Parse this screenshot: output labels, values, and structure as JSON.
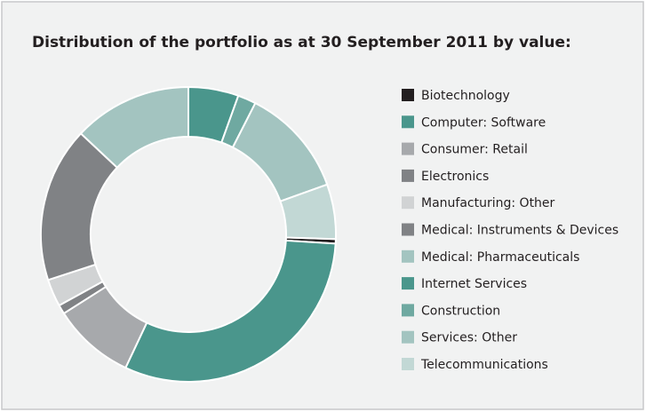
{
  "chart_data": {
    "type": "donut",
    "title": "Distribution of the portfolio as at 30 September 2011 by value:",
    "categories": [
      "Biotechnology",
      "Computer: Software",
      "Consumer: Retail",
      "Electronics",
      "Manufacturing: Other",
      "Medical: Instruments & Devices",
      "Medical: Pharmaceuticals",
      "Internet Services",
      "Construction",
      "Services: Other",
      "Telecommunications"
    ],
    "values": [
      0.5,
      31,
      9,
      1,
      3,
      17,
      13,
      5.5,
      2,
      12,
      6
    ],
    "colors": [
      "#231f20",
      "#4a968c",
      "#a7a9ac",
      "#808285",
      "#d1d3d4",
      "#808285",
      "#a3c4c0",
      "#4a968c",
      "#6fa9a1",
      "#a3c4c0",
      "#c2d8d5"
    ]
  }
}
